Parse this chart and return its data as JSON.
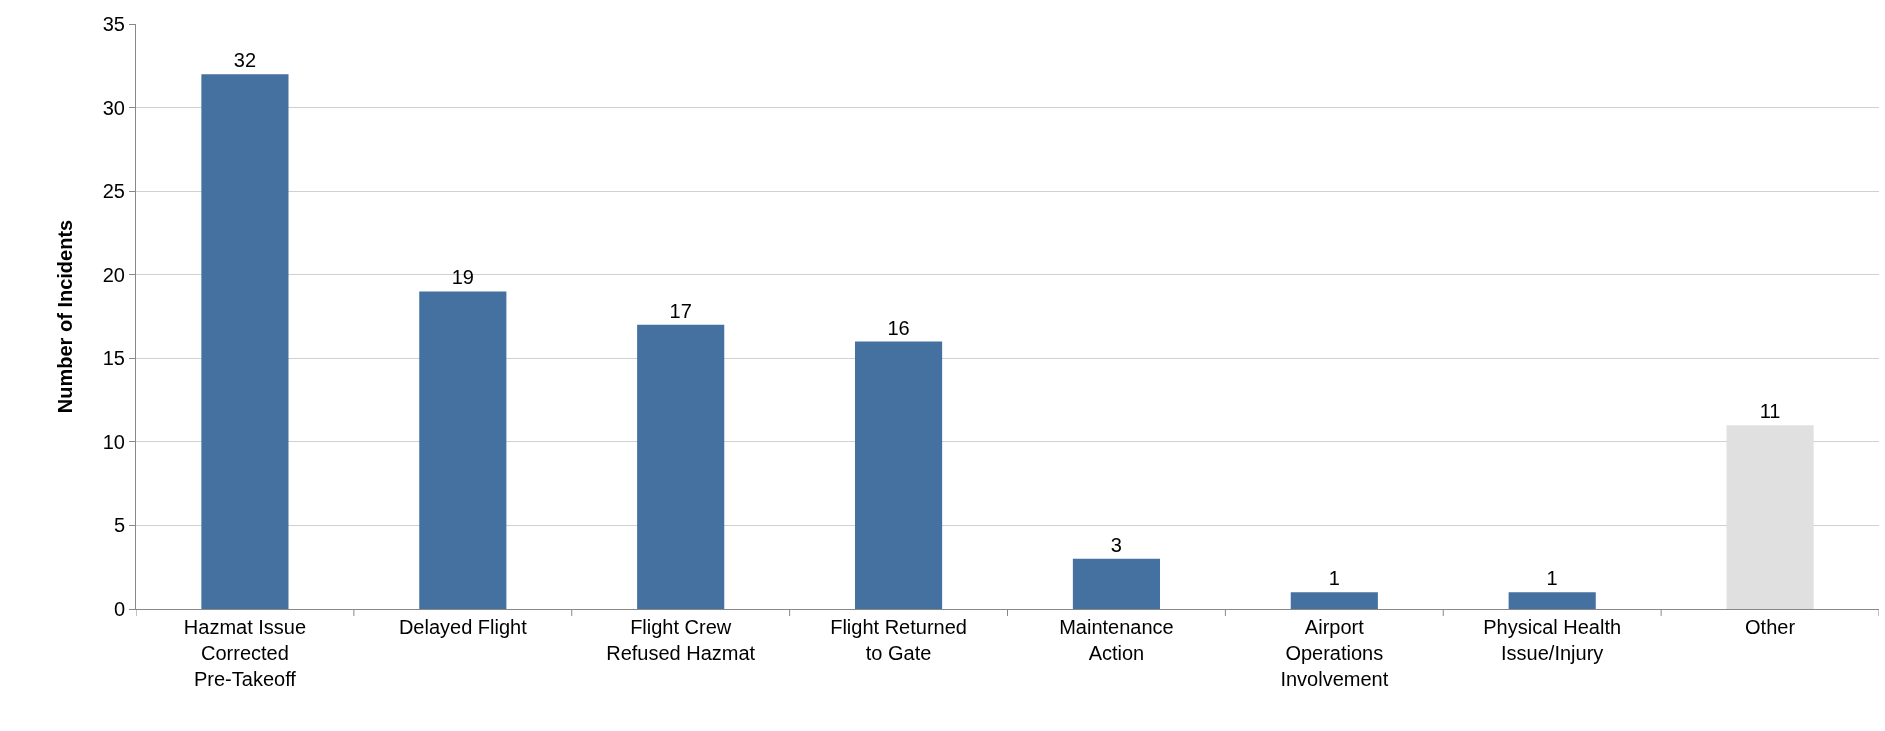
{
  "chart_data": {
    "type": "bar",
    "ylabel": "Number of Incidents",
    "categories": [
      "Hazmat Issue Corrected Pre-Takeoff",
      "Delayed Flight",
      "Flight Crew Refused Hazmat",
      "Flight Returned to Gate",
      "Maintenance Action",
      "Airport Operations Involvement",
      "Physical Health Issue/Injury",
      "Other"
    ],
    "values": [
      32,
      19,
      17,
      16,
      3,
      1,
      1,
      11
    ],
    "colors": [
      "#44719f",
      "#44719f",
      "#44719f",
      "#44719f",
      "#44719f",
      "#44719f",
      "#44719f",
      "#e0e0e0"
    ],
    "ylim": [
      0,
      35
    ],
    "yticks": [
      0,
      5,
      10,
      15,
      20,
      25,
      30,
      35
    ],
    "grid": "y",
    "legend": false,
    "data_labels": true
  }
}
